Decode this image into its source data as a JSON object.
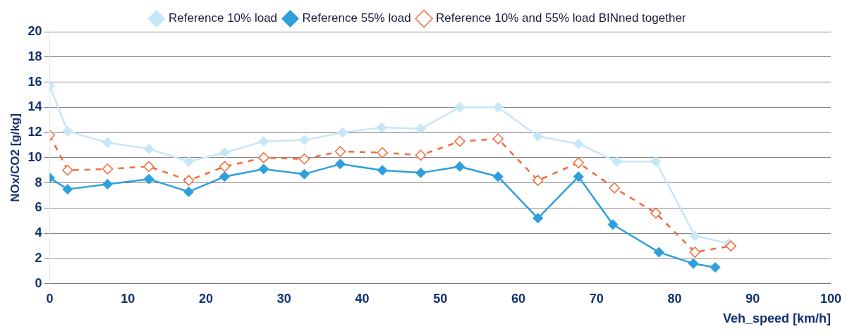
{
  "chart_data": {
    "type": "line",
    "xlabel": "Veh_speed [km/h]",
    "ylabel": "NOx/CO2 [g/kg]",
    "xlim": [
      0,
      100
    ],
    "xticks": [
      0,
      10,
      20,
      30,
      40,
      50,
      60,
      70,
      80,
      90,
      100
    ],
    "ylim": [
      0,
      20
    ],
    "yticks": [
      0,
      2,
      4,
      6,
      8,
      10,
      12,
      14,
      16,
      18,
      20
    ],
    "grid": "y",
    "legend": "top",
    "series": [
      {
        "name": "Reference 10% load",
        "color": "#c6e7f7",
        "marker": "diamond",
        "line_style": "solid",
        "x": [
          0,
          2.3,
          7.4,
          12.7,
          17.8,
          22.4,
          27.4,
          32.6,
          37.5,
          42.5,
          47.5,
          52.5,
          57.4,
          62.5,
          67.7,
          72.6,
          77.6,
          82.6,
          86.9
        ],
        "values": [
          15.7,
          12.1,
          11.2,
          10.7,
          9.7,
          10.4,
          11.3,
          11.4,
          12.0,
          12.4,
          12.3,
          14.0,
          14.0,
          11.7,
          11.1,
          9.7,
          9.7,
          3.8,
          3.2
        ]
      },
      {
        "name": "Reference 55% load",
        "color": "#2e9fdc",
        "marker": "diamond",
        "line_style": "solid",
        "x": [
          0,
          2.3,
          7.4,
          12.7,
          17.8,
          22.4,
          27.4,
          32.6,
          37.2,
          42.6,
          47.5,
          52.5,
          57.4,
          62.5,
          67.7,
          72.1,
          78.0,
          82.4,
          85.2
        ],
        "values": [
          8.4,
          7.5,
          7.9,
          8.3,
          7.3,
          8.5,
          9.1,
          8.7,
          9.5,
          9.0,
          8.8,
          9.3,
          8.5,
          5.2,
          8.5,
          4.7,
          2.5,
          1.6,
          1.3
        ]
      },
      {
        "name": "Reference 10% and 55% load BINned together",
        "color": "#f26b3a",
        "marker": "diamond",
        "line_style": "dashed",
        "x": [
          0,
          2.3,
          7.4,
          12.7,
          17.8,
          22.4,
          27.4,
          32.6,
          37.2,
          42.6,
          47.5,
          52.5,
          57.4,
          62.5,
          67.7,
          72.3,
          77.6,
          82.6,
          87.2
        ],
        "values": [
          11.8,
          9.0,
          9.1,
          9.3,
          8.2,
          9.3,
          10.0,
          9.9,
          10.5,
          10.4,
          10.2,
          11.3,
          11.5,
          8.2,
          9.6,
          7.6,
          5.6,
          2.5,
          3.0
        ]
      }
    ]
  }
}
